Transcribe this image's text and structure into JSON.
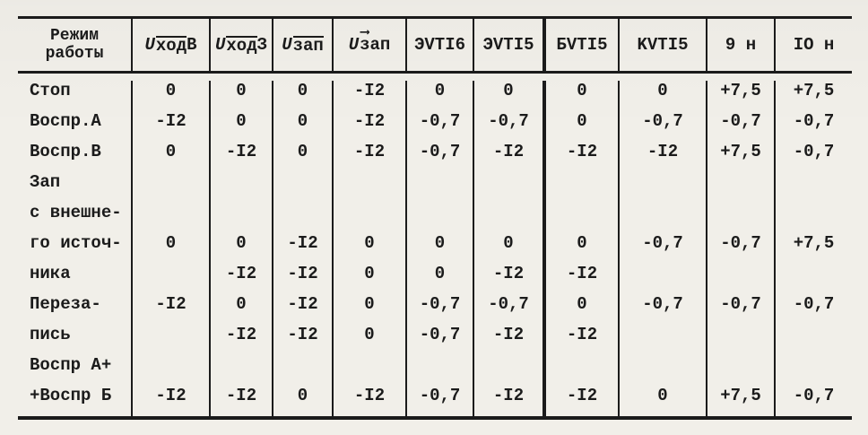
{
  "table": {
    "header": {
      "col1_line1": "Режим",
      "col1_line2": "работы",
      "signals": [
        {
          "pre": "U",
          "base": "ход",
          "suffix": "В"
        },
        {
          "pre": "U",
          "base": "ход",
          "suffix": "З"
        },
        {
          "pre": "U",
          "base": "зап",
          "suffix": ""
        },
        {
          "pre": "U",
          "base": "зап",
          "suffix": ""
        }
      ],
      "plain": [
        "ЭVTI6",
        "ЭVTI5",
        "БVTI5",
        "KVTI5",
        "9 н",
        "IO н"
      ]
    },
    "rows": [
      {
        "label": "Стоп",
        "cells": [
          "0",
          "0",
          "0",
          "-I2",
          "0",
          "0",
          "0",
          "0",
          "+7,5",
          "+7,5"
        ]
      },
      {
        "label": "Воспр.А",
        "cells": [
          "-I2",
          "0",
          "0",
          "-I2",
          "-0,7",
          "-0,7",
          "0",
          "-0,7",
          "-0,7",
          "-0,7"
        ]
      },
      {
        "label": "Воспр.В",
        "cells": [
          "0",
          "-I2",
          "0",
          "-I2",
          "-0,7",
          "-I2",
          "-I2",
          "-I2",
          "+7,5",
          "-0,7"
        ]
      },
      {
        "label": "Зап",
        "cells": [
          "",
          "",
          "",
          "",
          "",
          "",
          "",
          "",
          "",
          ""
        ]
      },
      {
        "label": "с внешне-",
        "cells": [
          "",
          "",
          "",
          "",
          "",
          "",
          "",
          "",
          "",
          ""
        ]
      },
      {
        "label": "го источ-",
        "cells": [
          "0",
          "0",
          "-I2",
          "0",
          "0",
          "0",
          "0",
          "-0,7",
          "-0,7",
          "+7,5"
        ]
      },
      {
        "label": "ника",
        "cells": [
          "",
          "-I2",
          "-I2",
          "0",
          "0",
          "-I2",
          "-I2",
          "",
          "",
          ""
        ]
      },
      {
        "label": "Переза-",
        "cells": [
          "-I2",
          "0",
          "-I2",
          "0",
          "-0,7",
          "-0,7",
          "0",
          "-0,7",
          "-0,7",
          "-0,7"
        ]
      },
      {
        "label": "пись",
        "cells": [
          "",
          "-I2",
          "-I2",
          "0",
          "-0,7",
          "-I2",
          "-I2",
          "",
          "",
          ""
        ]
      },
      {
        "label": "Воспр А+",
        "cells": [
          "",
          "",
          "",
          "",
          "",
          "",
          "",
          "",
          "",
          ""
        ]
      },
      {
        "label": "+Воспр Б",
        "cells": [
          "-I2",
          "-I2",
          "0",
          "-I2",
          "-0,7",
          "-I2",
          "-I2",
          "0",
          "+7,5",
          "-0,7"
        ]
      }
    ]
  },
  "icons": {
    "vector_arrow": "⟶"
  },
  "colors": {
    "ink": "#1b1b1b",
    "paper": "#f1efe9"
  }
}
